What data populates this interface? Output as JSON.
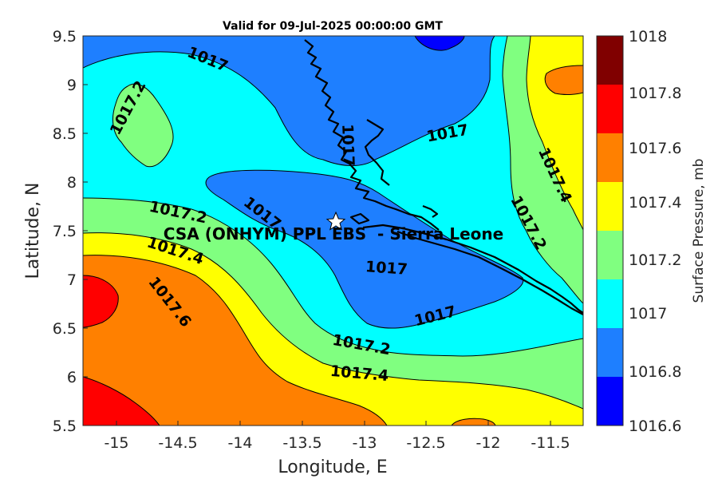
{
  "title": "Valid for 09-Jul-2025 00:00:00 GMT",
  "chart_data": {
    "type": "filled-contour-map",
    "xlabel": "Longitude, E",
    "ylabel": "Latitude, N",
    "xlim": [
      -15.25,
      -11.25
    ],
    "ylim": [
      5.5,
      9.5
    ],
    "xticks": [
      "-15",
      "-14.5",
      "-14",
      "-13.5",
      "-13",
      "-12.5",
      "-12",
      "-11.5"
    ],
    "xtick_values": [
      -15,
      -14.5,
      -14,
      -13.5,
      -13,
      -12.5,
      -12,
      -11.5
    ],
    "yticks": [
      "5.5",
      "6",
      "6.5",
      "7",
      "7.5",
      "8",
      "8.5",
      "9",
      "9.5"
    ],
    "ytick_values": [
      5.5,
      6,
      6.5,
      7,
      7.5,
      8,
      8.5,
      9,
      9.5
    ],
    "colorbar": {
      "label": "Surface Pressure, mb",
      "ticks": [
        "1016.6",
        "1016.8",
        "1017",
        "1017.2",
        "1017.4",
        "1017.6",
        "1017.8",
        "1018"
      ],
      "levels": [
        {
          "from": 1016.6,
          "to": 1016.8,
          "color": "#0000ff"
        },
        {
          "from": 1016.8,
          "to": 1017.0,
          "color": "#1e7fff"
        },
        {
          "from": 1017.0,
          "to": 1017.2,
          "color": "#00ffff"
        },
        {
          "from": 1017.2,
          "to": 1017.4,
          "color": "#80ff80"
        },
        {
          "from": 1017.4,
          "to": 1017.6,
          "color": "#ffff00"
        },
        {
          "from": 1017.6,
          "to": 1017.8,
          "color": "#ff8000"
        },
        {
          "from": 1017.8,
          "to": 1018.0,
          "color": "#ff0000"
        },
        {
          "from": 1018.0,
          "to": 1018.2,
          "color": "#800000"
        }
      ]
    },
    "contour_labels": [
      {
        "text": "1017",
        "lon": -14.8,
        "lat": 9.2
      },
      {
        "text": "1017.2",
        "lon": -14.8,
        "lat": 8.8
      },
      {
        "text": "1017",
        "lon": -12.6,
        "lat": 8.2
      },
      {
        "text": "1017",
        "lon": -13.2,
        "lat": 8.3
      },
      {
        "text": "1017.4",
        "lon": -11.5,
        "lat": 8.0
      },
      {
        "text": "1017.2",
        "lon": -11.8,
        "lat": 7.4
      },
      {
        "text": "1017.2",
        "lon": -14.5,
        "lat": 7.6
      },
      {
        "text": "1017",
        "lon": -14.0,
        "lat": 7.6
      },
      {
        "text": "1017.4",
        "lon": -14.6,
        "lat": 7.3
      },
      {
        "text": "1017",
        "lon": -12.9,
        "lat": 7.1
      },
      {
        "text": "1017.6",
        "lon": -14.6,
        "lat": 6.9
      },
      {
        "text": "1017",
        "lon": -12.5,
        "lat": 6.6
      },
      {
        "text": "1017.2",
        "lon": -12.9,
        "lat": 6.4
      },
      {
        "text": "1017.4",
        "lon": -12.9,
        "lat": 6.05
      }
    ],
    "site": {
      "name": "CSA (ONHYM) PPL EBS  - Sierra Leone",
      "lon": -13.23,
      "lat": 7.6,
      "marker": "white-star"
    }
  }
}
